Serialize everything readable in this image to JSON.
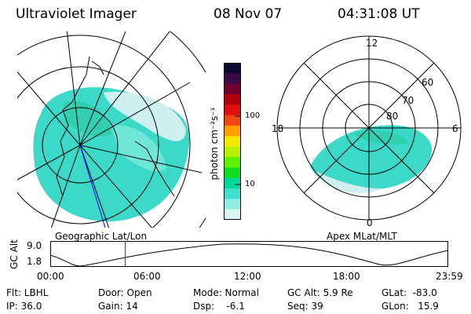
{
  "header": {
    "title": "Ultraviolet Imager",
    "date": "08 Nov 07",
    "time": "04:31:08 UT"
  },
  "geo_panel": {
    "label": "Geographic Lat/Lon"
  },
  "apex_panel": {
    "label": "Apex MLat/MLT",
    "mlt_labels": {
      "top": "12",
      "left": "18",
      "right": "6",
      "bottom": "0"
    },
    "lat_labels": [
      "60",
      "70",
      "80"
    ]
  },
  "colorbar": {
    "unit_label": "photon cm⁻²s⁻¹",
    "ticks": [
      "100",
      "10"
    ],
    "colors": [
      "#0a0a30",
      "#3a0a48",
      "#700030",
      "#b00010",
      "#e01010",
      "#f04818",
      "#ff9e00",
      "#f5e800",
      "#b8f000",
      "#60f000",
      "#10e020",
      "#00d8a0",
      "#40e0d0",
      "#90ece4",
      "#dcf6f4"
    ]
  },
  "altitude_plot": {
    "ylabel": "GC Alt",
    "yticks": [
      "9.0",
      "1.8"
    ],
    "xticks": [
      "00:00",
      "06:00",
      "12:00",
      "18:00",
      "23:59"
    ],
    "marker_hour": 4.52,
    "line_color": "#d00000"
  },
  "footer": {
    "flt": "Flt: LBHL",
    "ip": "IP: 36.0",
    "door": "Door: Open",
    "gain": "Gain: 14",
    "mode": "Mode: Normal",
    "dsp": "Dsp:    -6.1",
    "gcalt": "GC Alt: 5.9 Re",
    "seq": "Seq: 39",
    "glat": "GLat:  -83.0",
    "glon": "GLon:   15.9"
  }
}
